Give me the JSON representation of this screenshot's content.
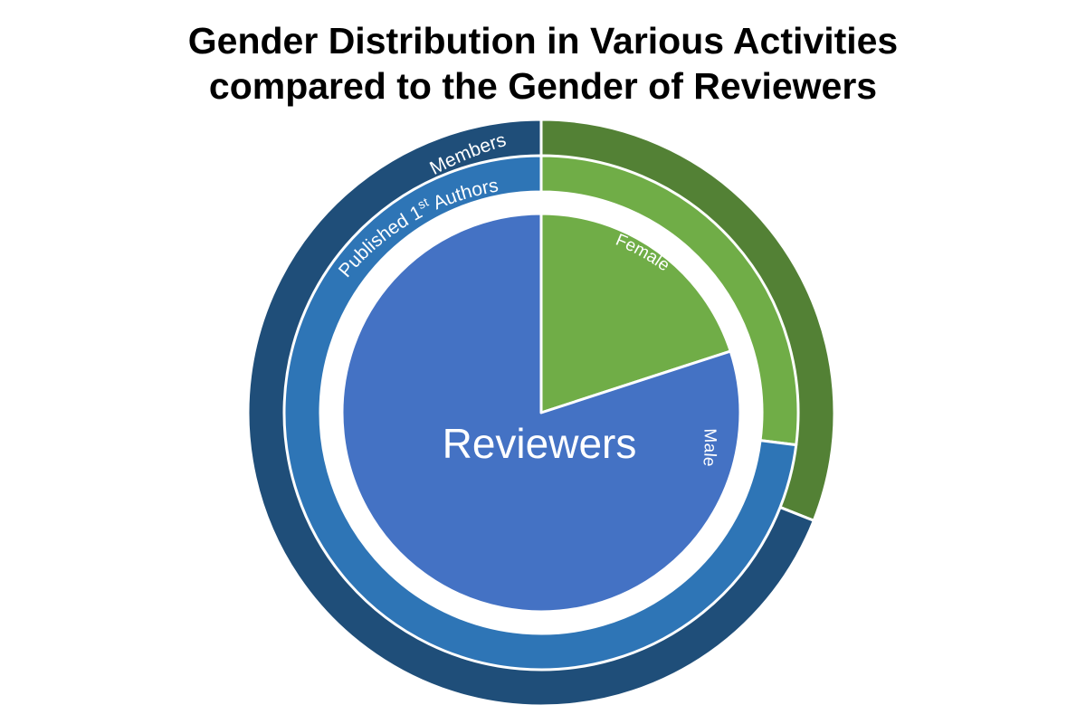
{
  "title": {
    "line1": "Gender Distribution in Various Activities",
    "line2": "compared to the Gender of Reviewers"
  },
  "chart_data": {
    "type": "pie",
    "categories": [
      "Female",
      "Male"
    ],
    "rings": [
      {
        "name": "Members",
        "values": [
          31,
          69
        ],
        "colors": {
          "Female": "#538135",
          "Male": "#1F4E79"
        }
      },
      {
        "name": "Published 1st Authors",
        "name_parts": {
          "before": "Published 1",
          "sup": "st",
          "after": " Authors"
        },
        "values": [
          27,
          73
        ],
        "colors": {
          "Female": "#70AD47",
          "Male": "#2E75B6"
        }
      },
      {
        "name": "Reviewers",
        "values": [
          20,
          80
        ],
        "colors": {
          "Female": "#70AD47",
          "Male": "#4472C4"
        }
      }
    ],
    "slice_labels": {
      "female": "Female",
      "male": "Male"
    },
    "start_angle": "12 o'clock, clockwise",
    "legend": "none"
  }
}
